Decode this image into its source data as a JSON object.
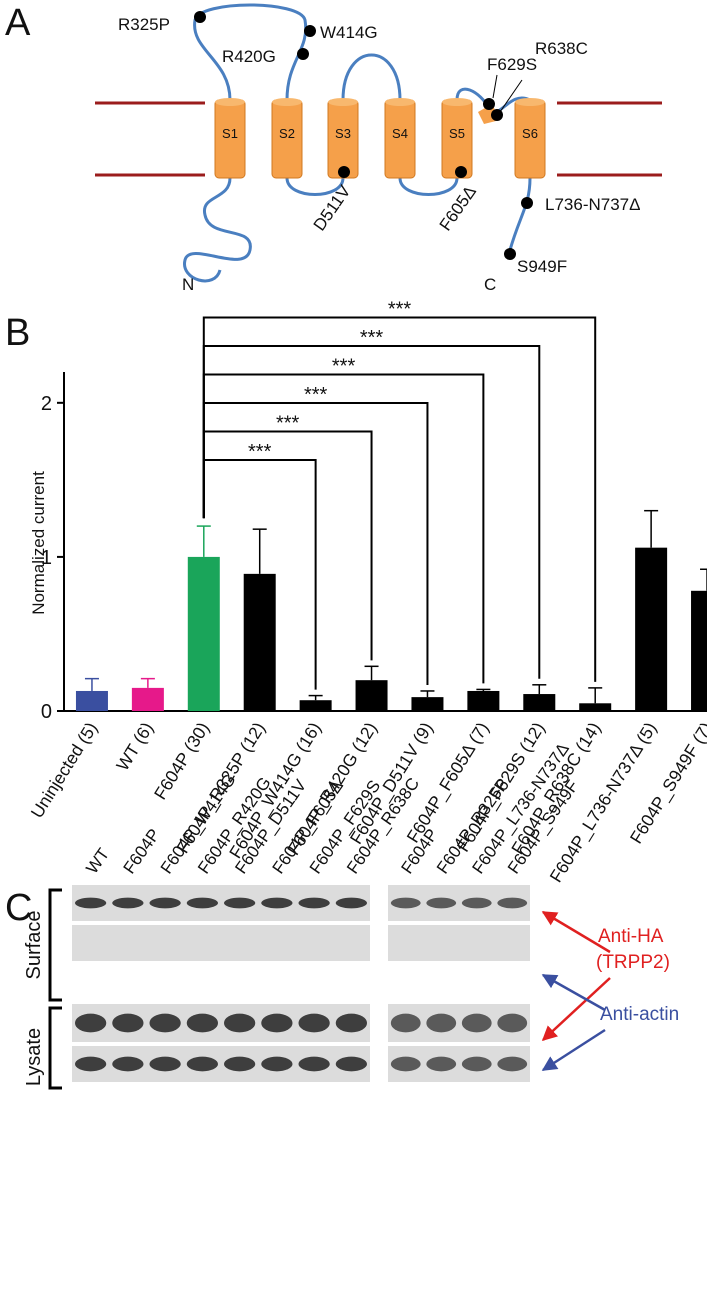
{
  "panel_a": {
    "letter": "A",
    "segments": [
      "S1",
      "S2",
      "S3",
      "S4",
      "S5",
      "S6"
    ],
    "mutations": [
      "R325P",
      "W414G",
      "R420G",
      "D511V",
      "F605Δ",
      "F629S",
      "R638C",
      "L736-N737Δ",
      "S949F"
    ],
    "n_term": "N",
    "c_term": "C"
  },
  "panel_b": {
    "letter": "B"
  },
  "chart_data": {
    "type": "bar",
    "ylabel": "Normalized current",
    "categories": [
      "Uninjected (5)",
      "WT (6)",
      "F604P (30)",
      "F604P_R325P (12)",
      "F604P_W414G (16)",
      "F604P_R420G (12)",
      "F604P_D511V (9)",
      "F604P_F605Δ (7)",
      "F604P_F629S (12)",
      "F604P_R638C (14)",
      "F604P_L736-N737Δ (5)",
      "F604P_S949F (7)"
    ],
    "values": [
      0.13,
      0.15,
      1.0,
      0.89,
      0.07,
      0.2,
      0.09,
      0.13,
      0.11,
      0.05,
      1.06,
      0.78
    ],
    "errors": [
      0.08,
      0.06,
      0.2,
      0.29,
      0.03,
      0.09,
      0.04,
      0.01,
      0.06,
      0.1,
      0.24,
      0.14
    ],
    "colors": [
      "#3a4fa0",
      "#e6198a",
      "#1aa55a",
      "#000000",
      "#000000",
      "#000000",
      "#000000",
      "#000000",
      "#000000",
      "#000000",
      "#000000",
      "#000000"
    ],
    "ylim": [
      0,
      2.2
    ],
    "yticks": [
      0,
      1,
      2
    ],
    "significance": [
      {
        "from": "F604P (30)",
        "to": "F604P_W414G (16)",
        "label": "***"
      },
      {
        "from": "F604P (30)",
        "to": "F604P_R420G (12)",
        "label": "***"
      },
      {
        "from": "F604P (30)",
        "to": "F604P_D511V (9)",
        "label": "***"
      },
      {
        "from": "F604P (30)",
        "to": "F604P_F605Δ (7)",
        "label": "***"
      },
      {
        "from": "F604P (30)",
        "to": "F604P_F629S (12)",
        "label": "***"
      },
      {
        "from": "F604P (30)",
        "to": "F604P_R638C (14)",
        "label": "***"
      }
    ]
  },
  "panel_c": {
    "letter": "C",
    "lanes_left": [
      "WT",
      "F604P",
      "F604P_W414G",
      "F604P_R420G",
      "F604P_D511V",
      "F604P_F605Δ",
      "F604P_F629S",
      "F604P_R638C"
    ],
    "lanes_right": [
      "F604P",
      "F604P_R325P",
      "F604P_L736-N737Δ",
      "F604P_S949F"
    ],
    "groups": [
      "Surface",
      "Lysate"
    ],
    "antibody_ha": "Anti-HA",
    "antibody_ha_target": "(TRPP2)",
    "antibody_actin": "Anti-actin"
  }
}
